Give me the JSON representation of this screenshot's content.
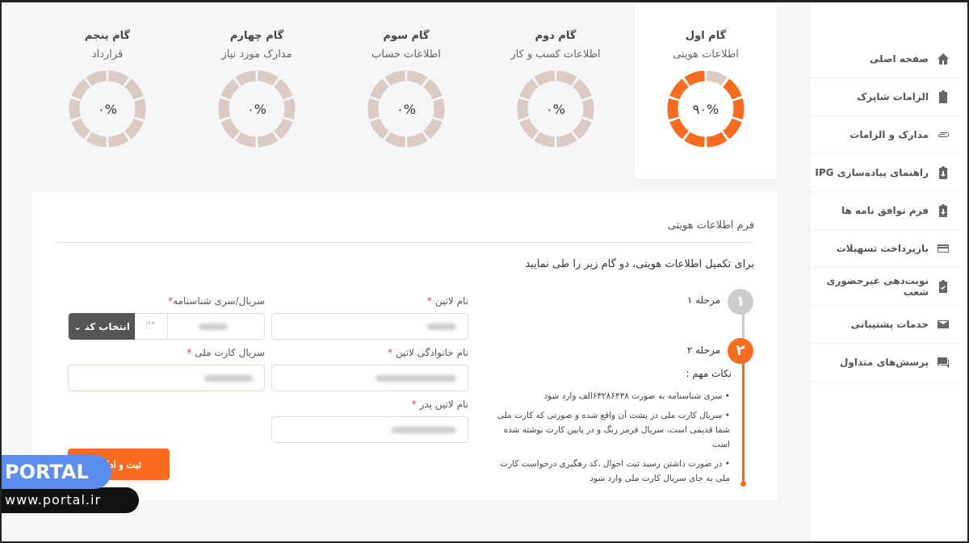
{
  "sidebar": {
    "items": [
      {
        "label": "صفحه اصلی",
        "icon": "home-icon"
      },
      {
        "label": "الزامات شاپرک",
        "icon": "clipboard-icon"
      },
      {
        "label": "مدارک و الزامات",
        "icon": "paperclip-icon"
      },
      {
        "label": "راهنمای پیاده‌سازی IPG",
        "icon": "clipboard-download-icon"
      },
      {
        "label": "فرم توافق نامه ها",
        "icon": "clipboard-download-icon"
      },
      {
        "label": "بازپرداخت تسهیلات",
        "icon": "credit-card-icon"
      },
      {
        "label": "نوبت‌دهی غیرحضوری شعب",
        "icon": "clipboard-check-icon"
      },
      {
        "label": "خدمات پشتیبانی",
        "icon": "mail-icon"
      },
      {
        "label": "پرسش‌های متداول",
        "icon": "chat-icon"
      }
    ]
  },
  "steps": [
    {
      "title": "گام اول",
      "subtitle": "اطلاعات هویتی",
      "percent_label": "۹۰%",
      "progress": 90
    },
    {
      "title": "گام دوم",
      "subtitle": "اطلاعات کسب و کار",
      "percent_label": "۰%",
      "progress": 0
    },
    {
      "title": "گام سوم",
      "subtitle": "اطلاعات حساب",
      "percent_label": "۰%",
      "progress": 0
    },
    {
      "title": "گام چهارم",
      "subtitle": "مدارک مورد نیاز",
      "percent_label": "۰%",
      "progress": 0
    },
    {
      "title": "گام پنجم",
      "subtitle": "قرارداد",
      "percent_label": "۰%",
      "progress": 0
    }
  ],
  "form": {
    "title": "فرم اطلاعات هویتی",
    "intro": "برای تکمیل اطلاعات هویتی، دو گام زیر را طی نمایید",
    "fields": {
      "latin_name": "نام لاتین",
      "id_serial": "سریال/سری شناسنامه",
      "latin_family": "نام خانوادگی لاتین",
      "card_serial": "سریال کارت ملی",
      "latin_father": "نام لاتین پدر",
      "required_mark": "*",
      "serial_mask": "**",
      "select_label": "انتخاب کنید"
    },
    "submit": "ثبت و ادامه",
    "timeline": {
      "step1": "مرحله ۱",
      "step1_num": "۱",
      "step2": "مرحله ۲",
      "step2_num": "۲",
      "notes_title": "نکات مهم :",
      "notes": [
        "سری شناسنامه به صورت ۶۳۲۸۶۴۳۸الف وارد شود",
        "سریال کارت ملی در پشت آن واقع شده و صورتی که کارت ملی شما قدیمی است، سریال قرمز رنگ و در پایین کارت نوشته شده است",
        "در صورت داشتن رسید ثبت احوال ،کد رهگیری درخواست کارت ملی به جای سریال کارت ملی وارد شود"
      ]
    }
  },
  "watermark": {
    "brand": "PORTAL",
    "url": "www.portal.ir"
  },
  "colors": {
    "accent": "#f96b1e",
    "inactive": "#dccbc3",
    "watermark_blue": "#5b8def"
  }
}
